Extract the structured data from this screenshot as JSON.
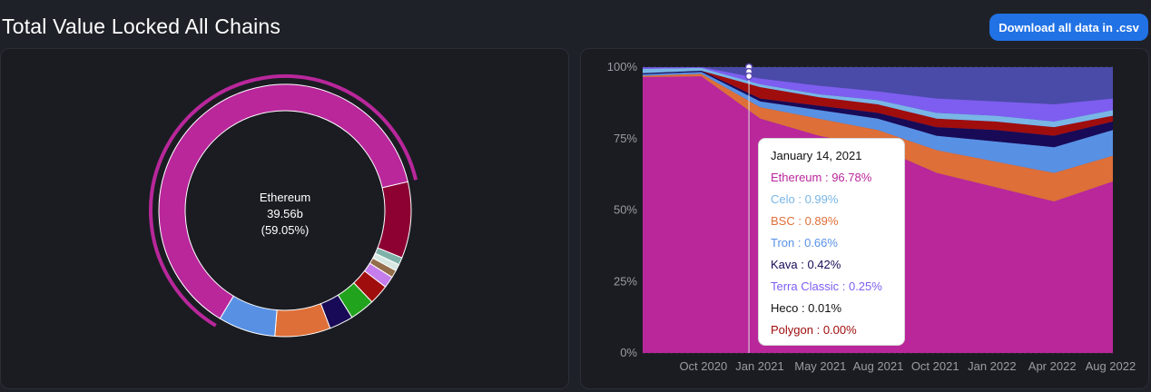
{
  "header": {
    "title": "Total Value Locked All Chains",
    "download_label": "Download all data in .csv"
  },
  "colors": {
    "accent": "#2172e5",
    "background": "#1f2128",
    "panel": "#1a1c22"
  },
  "chart_data": [
    {
      "type": "pie",
      "style": "donut",
      "center_label": {
        "name": "Ethereum",
        "value": "39.56b",
        "percent": "(59.05%)"
      },
      "slices": [
        {
          "value": 59.05,
          "color": "#b9279b"
        },
        {
          "value": 9.2,
          "color": "#8c0032"
        },
        {
          "value": 0.9,
          "color": "#7eb1a8"
        },
        {
          "value": 0.8,
          "color": "#d7e8e3"
        },
        {
          "value": 0.9,
          "color": "#946d4b"
        },
        {
          "value": 1.4,
          "color": "#c57deb"
        },
        {
          "value": 2.4,
          "color": "#a00d0d"
        },
        {
          "value": 3.0,
          "color": "#22a31e"
        },
        {
          "value": 2.9,
          "color": "#180a56"
        },
        {
          "value": 6.7,
          "color": "#de6f38"
        },
        {
          "value": 6.9,
          "color": "#5891e4"
        }
      ]
    },
    {
      "type": "area",
      "stacked_percent": true,
      "y_ticks": [
        "0%",
        "25%",
        "50%",
        "75%",
        "100%"
      ],
      "x_ticks": [
        "Oct 2020",
        "Jan 2021",
        "May 2021",
        "Aug 2021",
        "Oct 2021",
        "Jan 2022",
        "Apr 2022",
        "Aug 2022"
      ],
      "x_tick_pos": [
        0.129,
        0.249,
        0.378,
        0.501,
        0.622,
        0.743,
        0.871,
        0.995
      ],
      "grid": true,
      "crosshair_x": 0.226,
      "series": [
        {
          "name": "Ethereum",
          "color": "#b9279b",
          "values": [
            96.5,
            96.78,
            82,
            76,
            72,
            63,
            58,
            53,
            60
          ]
        },
        {
          "name": "BSC",
          "color": "#de6f38",
          "values": [
            0.5,
            0.89,
            4,
            6,
            6,
            8,
            9,
            10,
            9
          ]
        },
        {
          "name": "Tron",
          "color": "#5891e4",
          "values": [
            0.5,
            0.66,
            2,
            3,
            4,
            5,
            7,
            9,
            9
          ]
        },
        {
          "name": "Kava",
          "color": "#180a56",
          "values": [
            0.4,
            0.42,
            1,
            1.5,
            2,
            3,
            4,
            4,
            3
          ]
        },
        {
          "name": "Polygon",
          "color": "#a00d0d",
          "values": [
            0,
            0.0,
            4,
            3,
            3,
            3,
            3,
            3,
            2
          ]
        },
        {
          "name": "Celo",
          "color": "#79b6e6",
          "values": [
            1.5,
            0.99,
            1,
            1,
            1.5,
            2,
            2,
            2,
            2
          ]
        },
        {
          "name": "Terra Classic",
          "color": "#7d5ef0",
          "values": [
            0.5,
            0.25,
            2,
            3,
            3,
            5,
            5,
            6,
            4
          ]
        }
      ],
      "remainder_color": "#4a4aa8",
      "tooltip": {
        "date": "January 14, 2021",
        "rows": [
          {
            "label": "Ethereum : 96.78%",
            "color": "#b9279b"
          },
          {
            "label": "Celo : 0.99%",
            "color": "#79b6e6"
          },
          {
            "label": "BSC : 0.89%",
            "color": "#de6f38"
          },
          {
            "label": "Tron : 0.66%",
            "color": "#5891e4"
          },
          {
            "label": "Kava : 0.42%",
            "color": "#180a56"
          },
          {
            "label": "Terra Classic : 0.25%",
            "color": "#7d5ef0"
          },
          {
            "label": "Heco : 0.01%",
            "color": "#111111"
          },
          {
            "label": "Polygon : 0.00%",
            "color": "#a00d0d"
          }
        ]
      }
    }
  ]
}
